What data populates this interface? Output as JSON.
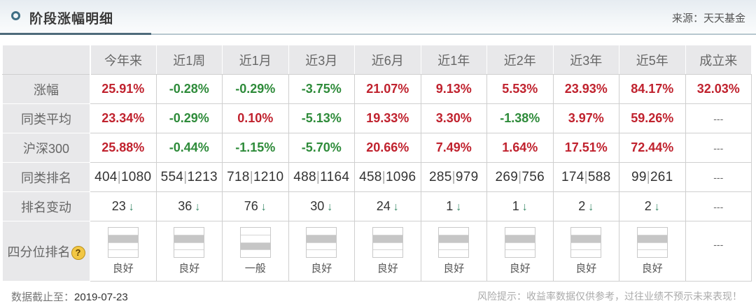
{
  "header": {
    "title": "阶段涨幅明细",
    "source": "来源：天天基金",
    "accent_color": "#3f6f85"
  },
  "table": {
    "columns": [
      "今年来",
      "近1周",
      "近1月",
      "近3月",
      "近6月",
      "近1年",
      "近2年",
      "近3年",
      "近5年",
      "成立来"
    ],
    "rows": {
      "return": {
        "label": "涨幅",
        "values": [
          "25.91%",
          "-0.28%",
          "-0.29%",
          "-3.75%",
          "21.07%",
          "9.13%",
          "5.53%",
          "23.93%",
          "84.17%",
          "32.03%"
        ],
        "signs": [
          "pos",
          "neg",
          "neg",
          "neg",
          "pos",
          "pos",
          "pos",
          "pos",
          "pos",
          "pos"
        ]
      },
      "peer_avg": {
        "label": "同类平均",
        "values": [
          "23.34%",
          "-0.29%",
          "0.10%",
          "-5.13%",
          "19.33%",
          "3.30%",
          "-1.38%",
          "3.97%",
          "59.26%",
          "---"
        ],
        "signs": [
          "pos",
          "neg",
          "pos",
          "neg",
          "pos",
          "pos",
          "neg",
          "pos",
          "pos",
          "none"
        ]
      },
      "csi300": {
        "label": "沪深300",
        "values": [
          "25.88%",
          "-0.44%",
          "-1.15%",
          "-5.70%",
          "20.66%",
          "7.49%",
          "1.64%",
          "17.51%",
          "72.44%",
          "---"
        ],
        "signs": [
          "pos",
          "neg",
          "neg",
          "neg",
          "pos",
          "pos",
          "pos",
          "pos",
          "pos",
          "none"
        ]
      },
      "peer_rank": {
        "label": "同类排名",
        "values": [
          {
            "rank": "404",
            "total": "1080"
          },
          {
            "rank": "554",
            "total": "1213"
          },
          {
            "rank": "718",
            "total": "1210"
          },
          {
            "rank": "488",
            "total": "1164"
          },
          {
            "rank": "458",
            "total": "1096"
          },
          {
            "rank": "285",
            "total": "979"
          },
          {
            "rank": "269",
            "total": "756"
          },
          {
            "rank": "174",
            "total": "588"
          },
          {
            "rank": "99",
            "total": "261"
          },
          "---"
        ]
      },
      "rank_change": {
        "label": "排名变动",
        "values": [
          "23",
          "36",
          "76",
          "30",
          "24",
          "1",
          "1",
          "2",
          "2",
          "---"
        ],
        "arrow": "↓"
      },
      "quartile": {
        "label": "四分位排名",
        "help_icon": "?",
        "labels": [
          "良好",
          "良好",
          "一般",
          "良好",
          "良好",
          "良好",
          "良好",
          "良好",
          "良好",
          "---"
        ],
        "highlight_index": [
          1,
          1,
          2,
          1,
          1,
          1,
          1,
          1,
          1,
          null
        ]
      }
    },
    "colors": {
      "positive": "#c0222e",
      "negative": "#2e8b3a",
      "header_bg": "#e8e8ea"
    }
  },
  "footer": {
    "date_label": "数据截止至：",
    "date_value": "2019-07-23",
    "risk_notice": "风险提示：收益率数据仅供参考，过往业绩不预示未来表现！"
  }
}
